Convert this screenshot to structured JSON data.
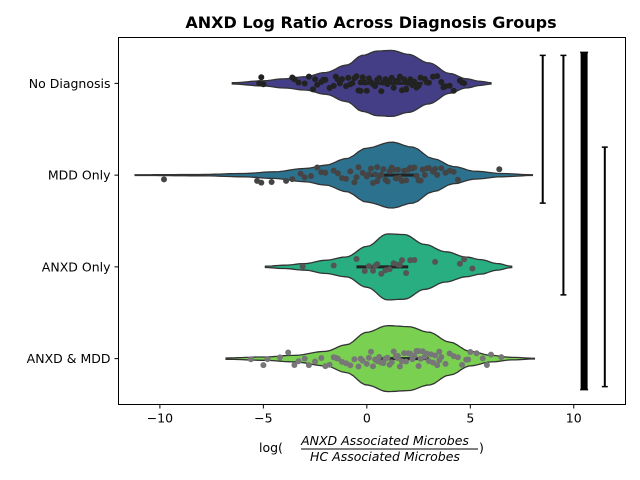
{
  "chart_data": {
    "type": "violin",
    "title": "ANXD Log Ratio Across Diagnosis Groups",
    "xlabel": {
      "prefix": "log(",
      "numerator": "ANXD Associated Microbes",
      "denominator": "HC Associated Microbes",
      "suffix": ")"
    },
    "xlim": [
      -12,
      12.5
    ],
    "xticks": [
      -10,
      -5,
      0,
      5,
      10
    ],
    "xtick_labels": [
      "−10",
      "−5",
      "0",
      "5",
      "10"
    ],
    "categories": [
      "No Diagnosis",
      "MDD Only",
      "ANXD Only",
      "ANXD & MDD"
    ],
    "violins": [
      {
        "name": "No Diagnosis",
        "color": "#433e85",
        "min": -6.5,
        "max": 6.0,
        "median": 1.2,
        "q1": -0.3,
        "q3": 2.7,
        "density": [
          [
            -6.5,
            0.02
          ],
          [
            -5,
            0.08
          ],
          [
            -4,
            0.14
          ],
          [
            -3,
            0.2
          ],
          [
            -2,
            0.33
          ],
          [
            -1,
            0.55
          ],
          [
            -0.2,
            0.85
          ],
          [
            0.5,
            0.98
          ],
          [
            1.2,
            1.0
          ],
          [
            2,
            0.88
          ],
          [
            3,
            0.62
          ],
          [
            4,
            0.3
          ],
          [
            4.8,
            0.14
          ],
          [
            5.5,
            0.06
          ],
          [
            6.0,
            0.02
          ]
        ]
      },
      {
        "name": "MDD Only",
        "color": "#2c728e",
        "min": -11.2,
        "max": 8.0,
        "median": 1.2,
        "q1": 0.0,
        "q3": 2.5,
        "density": [
          [
            -11.2,
            0.01
          ],
          [
            -8,
            0.02
          ],
          [
            -6,
            0.05
          ],
          [
            -4.5,
            0.1
          ],
          [
            -3,
            0.2
          ],
          [
            -2,
            0.3
          ],
          [
            -1,
            0.5
          ],
          [
            0,
            0.82
          ],
          [
            1.2,
            1.0
          ],
          [
            2.2,
            0.85
          ],
          [
            3.2,
            0.5
          ],
          [
            4.2,
            0.26
          ],
          [
            5.2,
            0.12
          ],
          [
            6.5,
            0.05
          ],
          [
            8.0,
            0.01
          ]
        ]
      },
      {
        "name": "ANXD Only",
        "color": "#28ae80",
        "min": -4.9,
        "max": 7.0,
        "median": 1.2,
        "q1": -0.5,
        "q3": 2.0,
        "density": [
          [
            -4.9,
            0.02
          ],
          [
            -4,
            0.05
          ],
          [
            -3,
            0.1
          ],
          [
            -2,
            0.2
          ],
          [
            -1,
            0.3
          ],
          [
            0,
            0.62
          ],
          [
            1,
            1.0
          ],
          [
            1.8,
            0.98
          ],
          [
            2.8,
            0.68
          ],
          [
            3.8,
            0.46
          ],
          [
            4.8,
            0.3
          ],
          [
            5.5,
            0.22
          ],
          [
            6.3,
            0.1
          ],
          [
            7.0,
            0.02
          ]
        ]
      },
      {
        "name": "ANXD & MDD",
        "color": "#7ad151",
        "min": -6.8,
        "max": 8.1,
        "median": 1.5,
        "q1": 0.5,
        "q3": 3.0,
        "density": [
          [
            -6.8,
            0.02
          ],
          [
            -5,
            0.05
          ],
          [
            -3.5,
            0.1
          ],
          [
            -2,
            0.22
          ],
          [
            -1,
            0.42
          ],
          [
            0,
            0.8
          ],
          [
            1,
            1.0
          ],
          [
            2,
            0.97
          ],
          [
            3,
            0.8
          ],
          [
            4,
            0.5
          ],
          [
            5,
            0.22
          ],
          [
            6,
            0.1
          ],
          [
            7,
            0.04
          ],
          [
            8.1,
            0.01
          ]
        ]
      }
    ],
    "strip_points": [
      {
        "category": "No Diagnosis",
        "color": "#222222",
        "x": [
          -5.2,
          -5.0,
          -5.1,
          -3.5,
          -3.3,
          -3.0,
          -2.8,
          -2.6,
          -2.4,
          -2.2,
          -2.0,
          -1.8,
          -1.6,
          -1.5,
          -1.3,
          -1.2,
          -1.0,
          -0.9,
          -0.8,
          -0.7,
          -0.6,
          -0.5,
          -0.4,
          -0.3,
          -0.2,
          -0.1,
          0.0,
          0.1,
          0.2,
          0.3,
          0.4,
          0.5,
          0.6,
          0.7,
          0.8,
          0.9,
          1.0,
          1.1,
          1.2,
          1.3,
          1.4,
          1.5,
          1.6,
          1.7,
          1.8,
          1.9,
          2.0,
          2.1,
          2.2,
          2.3,
          2.4,
          2.5,
          2.6,
          2.8,
          3.0,
          3.2,
          3.4,
          3.6,
          3.8,
          4.0,
          4.2,
          4.5,
          4.6,
          4.7,
          2.9,
          1.9,
          0.8,
          -0.3,
          -1.4,
          -2.5,
          3.7,
          -3.6,
          -2.1
        ]
      },
      {
        "category": "MDD Only",
        "color": "#444444",
        "x": [
          -9.8,
          -5.3,
          -5.1,
          -4.6,
          -3.9,
          -3.6,
          -3.0,
          -2.7,
          -2.4,
          -2.2,
          -2.0,
          -1.6,
          -1.4,
          -1.2,
          -1.0,
          -0.8,
          -0.6,
          -0.4,
          -0.2,
          0.0,
          0.1,
          0.2,
          0.3,
          0.4,
          0.5,
          0.6,
          0.7,
          0.8,
          0.9,
          1.0,
          1.1,
          1.2,
          1.3,
          1.4,
          1.5,
          1.6,
          1.7,
          1.8,
          1.9,
          2.0,
          2.1,
          2.2,
          2.3,
          2.4,
          2.5,
          2.6,
          2.7,
          2.8,
          3.0,
          3.2,
          3.4,
          3.6,
          3.8,
          4.0,
          4.2,
          4.4,
          6.4,
          1.5,
          0.5,
          -0.5,
          2.9,
          -3.2,
          3.3
        ]
      },
      {
        "category": "ANXD Only",
        "color": "#555555",
        "x": [
          -3.1,
          -1.6,
          -0.5,
          -0.1,
          0.1,
          0.3,
          0.5,
          0.7,
          0.9,
          1.1,
          1.3,
          1.5,
          1.7,
          1.9,
          2.1,
          2.3,
          3.3,
          4.5,
          4.7,
          5.1,
          0.4,
          1.6
        ]
      },
      {
        "category": "ANXD & MDD",
        "color": "#777777",
        "x": [
          -5.6,
          -5.0,
          -4.8,
          -4.2,
          -3.8,
          -3.5,
          -3.3,
          -3.0,
          -2.8,
          -2.5,
          -2.2,
          -2.0,
          -1.8,
          -1.6,
          -1.4,
          -1.2,
          -1.0,
          -0.8,
          -0.6,
          -0.4,
          -0.2,
          0.0,
          0.1,
          0.2,
          0.3,
          0.4,
          0.5,
          0.6,
          0.7,
          0.8,
          0.9,
          1.0,
          1.1,
          1.2,
          1.3,
          1.4,
          1.5,
          1.6,
          1.7,
          1.8,
          1.9,
          2.0,
          2.1,
          2.2,
          2.3,
          2.4,
          2.5,
          2.6,
          2.7,
          2.8,
          2.9,
          3.0,
          3.1,
          3.2,
          3.3,
          3.4,
          3.5,
          3.6,
          3.8,
          4.0,
          4.2,
          4.4,
          4.6,
          4.8,
          5.0,
          5.3,
          5.6,
          6.0,
          6.5,
          -0.3,
          1.5,
          2.5,
          3.5,
          0.7,
          -1.5,
          4.9,
          5.8
        ]
      }
    ],
    "brackets": [
      {
        "x": 8.5,
        "from": "No Diagnosis",
        "to": "MDD Only",
        "weight": "thin"
      },
      {
        "x": 9.5,
        "from": "No Diagnosis",
        "to": "ANXD Only",
        "weight": "thin"
      },
      {
        "x": 10.5,
        "from": "No Diagnosis",
        "to": "ANXD & MDD",
        "weight": "thick"
      },
      {
        "x": 11.5,
        "from": "MDD Only",
        "to": "ANXD & MDD",
        "weight": "thin"
      }
    ],
    "grid": false,
    "legend": "none"
  }
}
